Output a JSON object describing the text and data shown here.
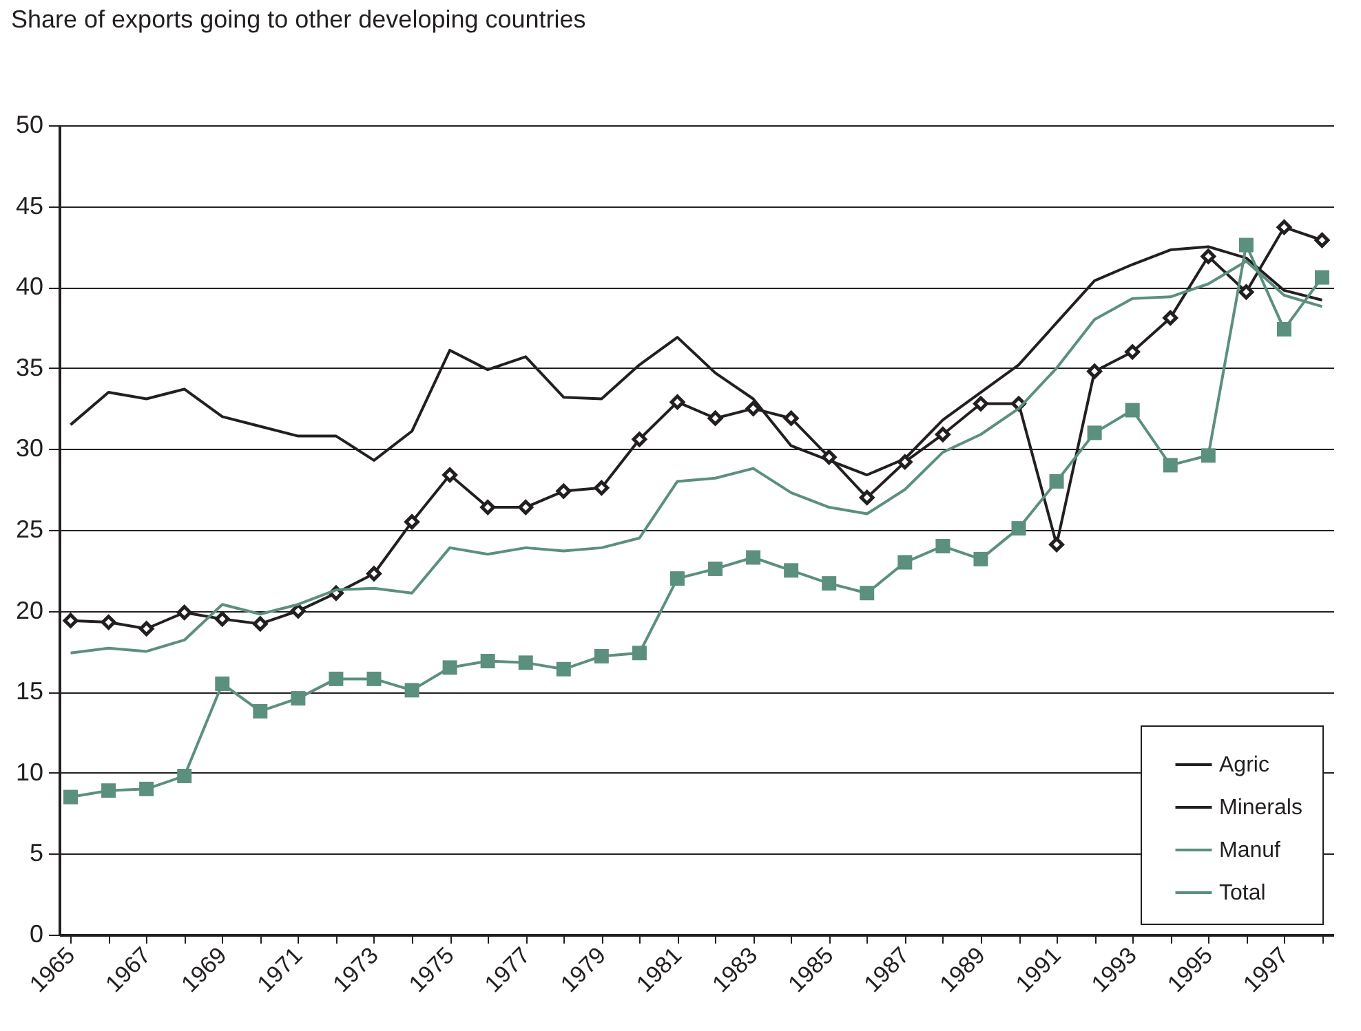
{
  "chart_data": {
    "type": "line",
    "title": "Share of exports going to other developing countries",
    "categories": [
      "1965",
      null,
      "1967",
      null,
      "1969",
      null,
      "1971",
      null,
      "1973",
      null,
      "1975",
      null,
      "1977",
      null,
      "1979",
      null,
      "1981",
      null,
      "1983",
      null,
      "1985",
      null,
      "1987",
      null,
      "1989",
      null,
      "1991",
      null,
      "1993",
      null,
      "1995",
      null,
      "1997",
      null
    ],
    "series": [
      {
        "name": "Agric",
        "color": "#231f20",
        "marker": "none",
        "values": [
          31.5,
          33.5,
          33.1,
          33.7,
          32.0,
          31.4,
          30.8,
          30.8,
          29.3,
          31.1,
          36.1,
          34.9,
          35.7,
          33.2,
          33.1,
          35.2,
          36.9,
          34.7,
          33.1,
          30.2,
          29.3,
          28.4,
          29.4,
          31.8,
          33.5,
          35.2,
          37.8,
          40.4,
          41.4,
          42.3,
          42.5,
          41.8,
          39.8,
          39.2
        ]
      },
      {
        "name": "Minerals",
        "color": "#231f20",
        "marker": "diamond",
        "values": [
          19.4,
          19.3,
          18.9,
          19.9,
          19.5,
          19.2,
          20.0,
          21.1,
          22.3,
          25.5,
          28.4,
          26.4,
          26.4,
          27.4,
          27.6,
          30.6,
          32.9,
          31.9,
          32.5,
          31.9,
          29.5,
          27.0,
          29.2,
          30.9,
          32.8,
          32.8,
          24.1,
          34.8,
          36.0,
          38.1,
          41.9,
          39.7,
          43.7,
          42.9
        ]
      },
      {
        "name": "Manuf",
        "color": "#5b8f7e",
        "marker": "none",
        "values": [
          17.4,
          17.7,
          17.5,
          18.2,
          20.4,
          19.8,
          20.4,
          21.3,
          21.4,
          21.1,
          23.9,
          23.5,
          23.9,
          23.7,
          23.9,
          24.5,
          28.0,
          28.2,
          28.8,
          27.3,
          26.4,
          26.0,
          27.5,
          29.8,
          30.9,
          32.5,
          35.0,
          38.0,
          39.3,
          39.4,
          40.2,
          41.6,
          39.5,
          38.8
        ]
      },
      {
        "name": "Total",
        "color": "#5b8f7e",
        "marker": "square",
        "values": [
          8.5,
          8.9,
          9.0,
          9.8,
          15.5,
          13.8,
          14.6,
          15.8,
          15.8,
          15.1,
          16.5,
          16.9,
          16.8,
          16.4,
          17.2,
          17.4,
          22.0,
          22.6,
          23.3,
          22.5,
          21.7,
          21.1,
          23.0,
          24.0,
          23.2,
          25.1,
          28.0,
          31.0,
          32.4,
          29.0,
          29.6,
          42.6,
          37.4,
          40.6
        ]
      }
    ],
    "ylim": [
      0,
      50
    ],
    "yticks": [
      0,
      5,
      10,
      15,
      20,
      25,
      30,
      35,
      40,
      45,
      50
    ],
    "grid": "y",
    "legend": "bottom right"
  }
}
